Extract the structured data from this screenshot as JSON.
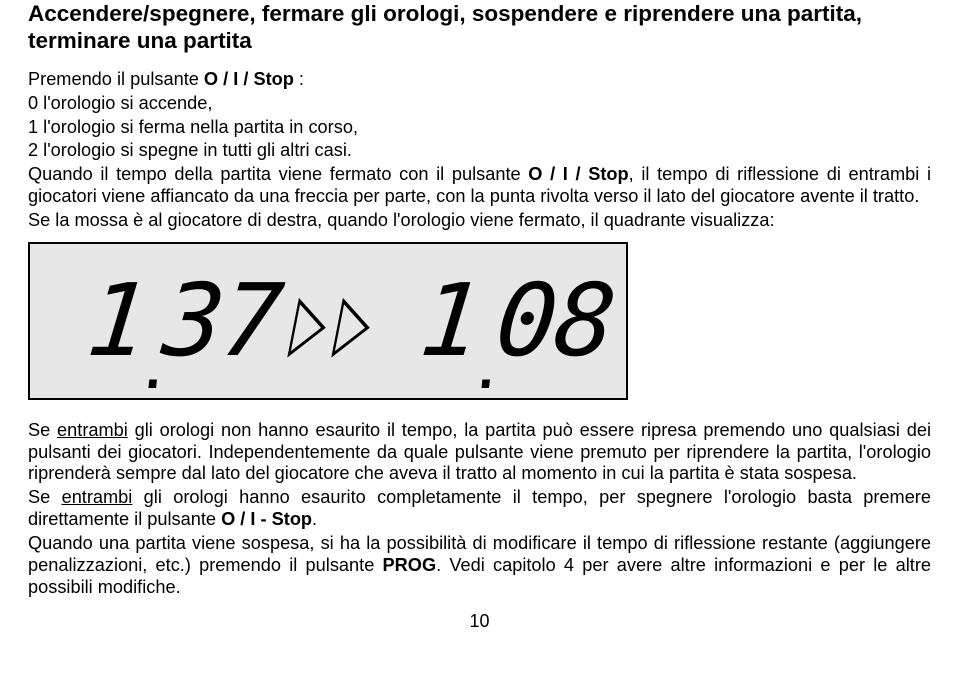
{
  "heading_line1": "Accendere/spegnere, fermare gli orologi, sospendere e riprendere una partita,",
  "heading_line2": "terminare una partita",
  "p1_a": "Premendo il pulsante ",
  "p1_b": "O / I / Stop",
  "p1_c": " :",
  "p2": "0  l'orologio si accende,",
  "p3": "1  l'orologio si ferma nella partita in corso,",
  "p4": "2  l'orologio si spegne in tutti gli altri casi.",
  "p5_a": "Quando il tempo della partita viene fermato con il pulsante ",
  "p5_b": "O / I / Stop",
  "p5_c": ", il tempo di riflessione di entrambi i giocatori viene affiancato da una freccia per parte, con la punta rivolta verso il lato del giocatore avente il tratto.",
  "p6": "Se la mossa è al giocatore di destra, quando l'orologio viene fermato, il quadrante visualizza:",
  "lcd": {
    "left_int": "1",
    "left_frac": "37",
    "right_int": "1",
    "right_frac": "08",
    "arrow_glyph": "▷",
    "background_color": "#e7e7e7",
    "border_color": "#000000",
    "digit_color": "#000000"
  },
  "p7_a": "Se ",
  "p7_b": "entrambi",
  "p7_c": " gli orologi non hanno esaurito il tempo, la partita può essere ripresa premendo uno qualsiasi dei pulsanti dei giocatori. Independentemente da quale pulsante viene premuto per riprendere la partita, l'orologio riprenderà sempre dal lato del giocatore che aveva il tratto al momento in cui la partita è stata sospesa.",
  "p8_a": "Se ",
  "p8_b": "entrambi",
  "p8_c": " gli orologi hanno esaurito completamente il tempo, per spegnere l'orologio basta premere direttamente il pulsante ",
  "p8_d": "O / I - Stop",
  "p8_e": ".",
  "p9_a": "Quando una partita viene sospesa, si ha la possibilità di modificare il tempo di riflessione restante (aggiungere penalizzazioni, etc.) premendo il pulsante ",
  "p9_b": "PROG",
  "p9_c": ". Vedi capitolo 4 per avere altre informazioni e per le altre possibili modifiche.",
  "page_number": "10"
}
